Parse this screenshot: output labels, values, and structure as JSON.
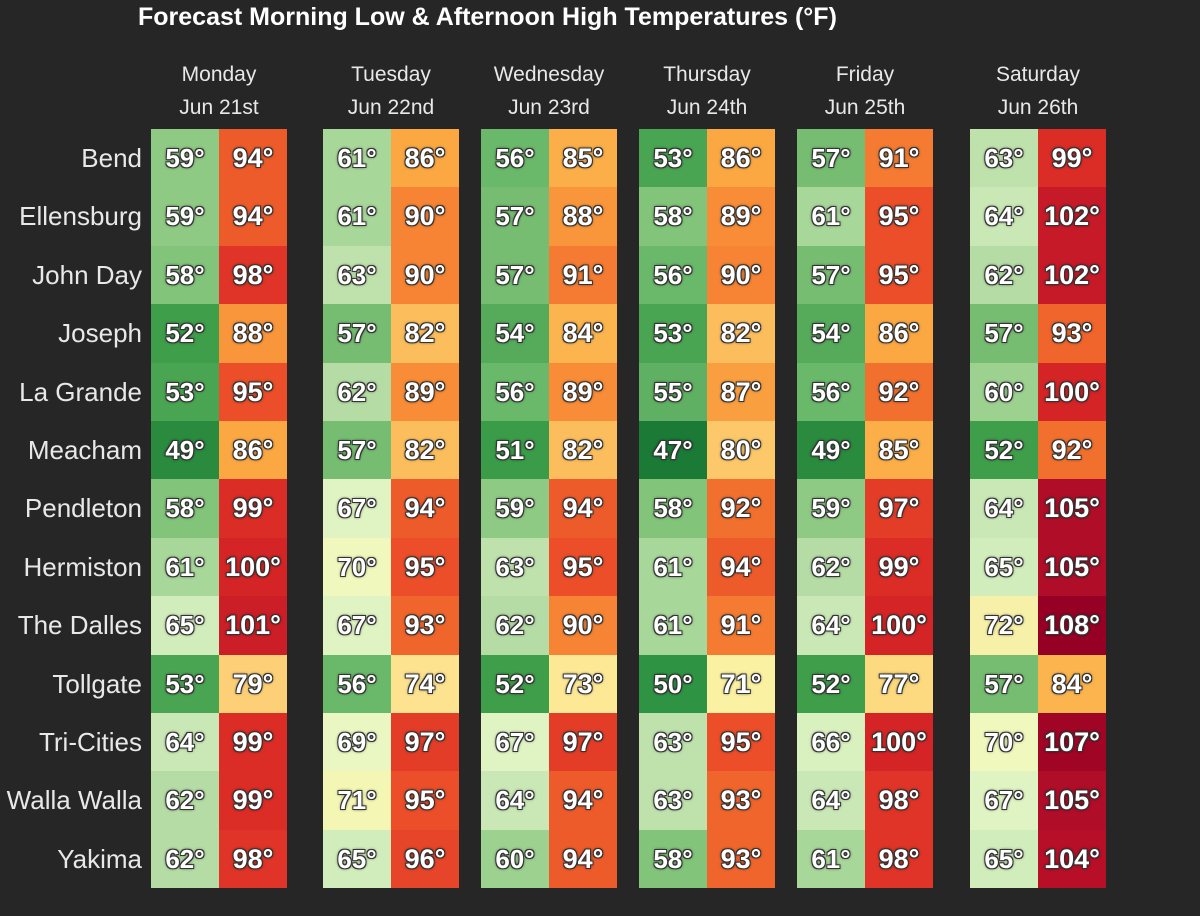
{
  "chart_data": {
    "type": "table",
    "title": "Forecast Morning Low & Afternoon High Temperatures (°F)",
    "days": [
      {
        "day": "Monday",
        "date": "Jun 21st"
      },
      {
        "day": "Tuesday",
        "date": "Jun 22nd"
      },
      {
        "day": "Wednesday",
        "date": "Jun 23rd"
      },
      {
        "day": "Thursday",
        "date": "Jun 24th"
      },
      {
        "day": "Friday",
        "date": "Jun 25th"
      },
      {
        "day": "Saturday",
        "date": "Jun 26th"
      }
    ],
    "cities": [
      "Bend",
      "Ellensburg",
      "John Day",
      "Joseph",
      "La Grande",
      "Meacham",
      "Pendleton",
      "Hermiston",
      "The Dalles",
      "Tollgate",
      "Tri-Cities",
      "Walla Walla",
      "Yakima"
    ],
    "unit_symbol": "°",
    "lows": [
      [
        59,
        61,
        56,
        53,
        57,
        63
      ],
      [
        59,
        61,
        57,
        58,
        61,
        64
      ],
      [
        58,
        63,
        57,
        56,
        57,
        62
      ],
      [
        52,
        57,
        54,
        53,
        54,
        57
      ],
      [
        53,
        62,
        56,
        55,
        56,
        60
      ],
      [
        49,
        57,
        51,
        47,
        49,
        52
      ],
      [
        58,
        67,
        59,
        58,
        59,
        64
      ],
      [
        61,
        70,
        63,
        61,
        62,
        65
      ],
      [
        65,
        67,
        62,
        61,
        64,
        72
      ],
      [
        53,
        56,
        52,
        50,
        52,
        57
      ],
      [
        64,
        69,
        67,
        63,
        66,
        70
      ],
      [
        62,
        71,
        64,
        63,
        64,
        67
      ],
      [
        62,
        65,
        60,
        58,
        61,
        65
      ]
    ],
    "highs": [
      [
        94,
        86,
        85,
        86,
        91,
        99
      ],
      [
        94,
        90,
        88,
        89,
        95,
        102
      ],
      [
        98,
        90,
        91,
        90,
        95,
        102
      ],
      [
        88,
        82,
        84,
        82,
        86,
        93
      ],
      [
        95,
        89,
        89,
        87,
        92,
        100
      ],
      [
        86,
        82,
        82,
        80,
        85,
        92
      ],
      [
        99,
        94,
        94,
        92,
        97,
        105
      ],
      [
        100,
        95,
        95,
        94,
        99,
        105
      ],
      [
        101,
        93,
        90,
        91,
        100,
        108
      ],
      [
        79,
        74,
        73,
        71,
        77,
        84
      ],
      [
        99,
        97,
        97,
        95,
        100,
        107
      ],
      [
        99,
        95,
        94,
        93,
        98,
        105
      ],
      [
        98,
        96,
        94,
        93,
        98,
        104
      ]
    ],
    "low_colors": {
      "47": "#1a7a36",
      "49": "#2a8a3e",
      "50": "#2e9444",
      "51": "#3a9c48",
      "52": "#3f9e4a",
      "53": "#4aa552",
      "54": "#55ab5a",
      "55": "#5fb062",
      "56": "#6ab86a",
      "57": "#76bd72",
      "58": "#82c47a",
      "59": "#8fca84",
      "60": "#9cd190",
      "61": "#a8d79a",
      "62": "#b4dca4",
      "63": "#bfe2ad",
      "64": "#c9e8b6",
      "65": "#d1edbb",
      "66": "#d9f0bf",
      "67": "#e0f4c3",
      "69": "#eaf7c2",
      "70": "#f0f8be",
      "71": "#f4f6b4",
      "72": "#f6f0a8"
    },
    "high_colors": {
      "71": "#fbf1a3",
      "73": "#fde896",
      "74": "#fde38f",
      "77": "#fdd97f",
      "79": "#fdd077",
      "80": "#fdc86a",
      "82": "#fcbe5c",
      "84": "#fcb44e",
      "85": "#fcaf48",
      "86": "#fba843",
      "87": "#fa9f3f",
      "88": "#f9963b",
      "89": "#f88c37",
      "90": "#f68434",
      "91": "#f47b31",
      "92": "#f2702e",
      "93": "#f0652c",
      "94": "#ee5b2b",
      "95": "#eb4e29",
      "96": "#e64529",
      "97": "#e33d28",
      "98": "#df3427",
      "99": "#db2c26",
      "100": "#d42426",
      "101": "#cc1e27",
      "102": "#c71a28",
      "104": "#b80f28",
      "105": "#b00d28",
      "107": "#a10526",
      "108": "#960024"
    }
  }
}
